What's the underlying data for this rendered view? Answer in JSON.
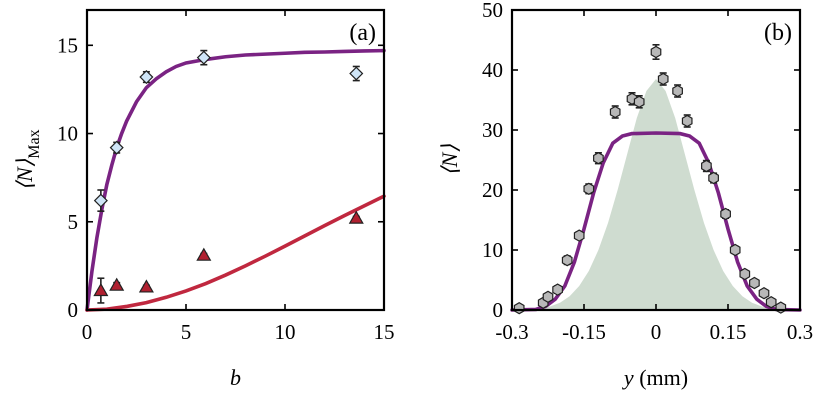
{
  "chart_data": [
    {
      "type": "scatter",
      "panel_label": "(a)",
      "xlabel": "b",
      "ylabel": "⟨N⟩",
      "ylabel_subscript": "Max",
      "xlim": [
        0,
        15
      ],
      "ylim": [
        0,
        17
      ],
      "xticks": [
        0,
        5,
        10,
        15
      ],
      "yticks": [
        0,
        5,
        10,
        15
      ],
      "series": [
        {
          "marker": "diamond",
          "color": "#cfe5f7",
          "points": [
            {
              "x": 0.7,
              "y": 6.2,
              "err": 0.6
            },
            {
              "x": 1.5,
              "y": 9.2,
              "err": 0.3
            },
            {
              "x": 3.0,
              "y": 13.2,
              "err": 0.3
            },
            {
              "x": 5.9,
              "y": 14.3,
              "err": 0.4
            },
            {
              "x": 13.6,
              "y": 13.4,
              "err": 0.4
            }
          ]
        },
        {
          "marker": "triangle",
          "color": "#b02030",
          "points": [
            {
              "x": 0.7,
              "y": 1.1,
              "err": 0.7
            },
            {
              "x": 1.5,
              "y": 1.4,
              "err": 0.15
            },
            {
              "x": 3.0,
              "y": 1.3,
              "err": 0.1
            },
            {
              "x": 5.9,
              "y": 3.1,
              "err": 0.1
            },
            {
              "x": 13.6,
              "y": 5.2,
              "err": 0.1
            }
          ]
        }
      ],
      "curves": [
        {
          "color": "#7a2383",
          "points": [
            [
              0,
              0
            ],
            [
              0.25,
              2.2
            ],
            [
              0.5,
              4.1
            ],
            [
              0.75,
              5.7
            ],
            [
              1,
              7.1
            ],
            [
              1.25,
              8.2
            ],
            [
              1.5,
              9.2
            ],
            [
              1.75,
              10.0
            ],
            [
              2,
              10.7
            ],
            [
              2.5,
              11.8
            ],
            [
              3,
              12.6
            ],
            [
              3.5,
              13.1
            ],
            [
              4,
              13.5
            ],
            [
              4.5,
              13.8
            ],
            [
              5,
              14.0
            ],
            [
              6,
              14.2
            ],
            [
              7,
              14.35
            ],
            [
              8,
              14.45
            ],
            [
              9,
              14.5
            ],
            [
              10,
              14.55
            ],
            [
              11,
              14.6
            ],
            [
              12,
              14.62
            ],
            [
              13,
              14.65
            ],
            [
              14,
              14.68
            ],
            [
              15,
              14.7
            ]
          ]
        },
        {
          "color": "#c0283f",
          "points": [
            [
              0,
              0
            ],
            [
              1,
              0.05
            ],
            [
              2,
              0.2
            ],
            [
              3,
              0.42
            ],
            [
              4,
              0.72
            ],
            [
              5,
              1.08
            ],
            [
              6,
              1.5
            ],
            [
              7,
              1.98
            ],
            [
              8,
              2.5
            ],
            [
              9,
              3.05
            ],
            [
              10,
              3.62
            ],
            [
              11,
              4.2
            ],
            [
              12,
              4.78
            ],
            [
              13,
              5.35
            ],
            [
              14,
              5.9
            ],
            [
              15,
              6.45
            ]
          ]
        }
      ]
    },
    {
      "type": "scatter",
      "panel_label": "(b)",
      "xlabel": "y (mm)",
      "ylabel": "⟨N⟩",
      "xlim": [
        -0.3,
        0.3
      ],
      "ylim": [
        0,
        50
      ],
      "xticks": [
        -0.3,
        -0.15,
        0,
        0.15,
        0.3
      ],
      "xtick_labels": [
        "-0.3",
        "-0.15",
        "0",
        "0.15",
        "0.3"
      ],
      "yticks": [
        0,
        10,
        20,
        30,
        40,
        50
      ],
      "area": {
        "color": "#cfdcd0",
        "points": [
          [
            -0.3,
            0
          ],
          [
            -0.25,
            0.2
          ],
          [
            -0.22,
            0.6
          ],
          [
            -0.2,
            1.2
          ],
          [
            -0.18,
            2.3
          ],
          [
            -0.16,
            4.0
          ],
          [
            -0.14,
            6.5
          ],
          [
            -0.12,
            10.0
          ],
          [
            -0.1,
            14.5
          ],
          [
            -0.08,
            20.0
          ],
          [
            -0.06,
            26.0
          ],
          [
            -0.04,
            32.0
          ],
          [
            -0.02,
            36.5
          ],
          [
            0,
            38.5
          ],
          [
            0.02,
            36.5
          ],
          [
            0.04,
            32.0
          ],
          [
            0.06,
            26.0
          ],
          [
            0.08,
            20.0
          ],
          [
            0.1,
            14.5
          ],
          [
            0.12,
            10.0
          ],
          [
            0.14,
            6.5
          ],
          [
            0.16,
            4.0
          ],
          [
            0.18,
            2.3
          ],
          [
            0.2,
            1.2
          ],
          [
            0.22,
            0.6
          ],
          [
            0.25,
            0.2
          ],
          [
            0.3,
            0
          ]
        ]
      },
      "curve": {
        "color": "#7a2383",
        "points": [
          [
            -0.3,
            0
          ],
          [
            -0.25,
            0.1
          ],
          [
            -0.23,
            0.6
          ],
          [
            -0.21,
            1.8
          ],
          [
            -0.19,
            4.0
          ],
          [
            -0.17,
            8.0
          ],
          [
            -0.15,
            13.5
          ],
          [
            -0.13,
            19.5
          ],
          [
            -0.11,
            24.5
          ],
          [
            -0.09,
            27.8
          ],
          [
            -0.07,
            29.0
          ],
          [
            -0.05,
            29.4
          ],
          [
            0,
            29.5
          ],
          [
            0.05,
            29.4
          ],
          [
            0.07,
            29.0
          ],
          [
            0.09,
            27.8
          ],
          [
            0.11,
            24.5
          ],
          [
            0.13,
            19.5
          ],
          [
            0.15,
            13.5
          ],
          [
            0.17,
            8.0
          ],
          [
            0.19,
            4.0
          ],
          [
            0.21,
            1.8
          ],
          [
            0.23,
            0.6
          ],
          [
            0.25,
            0.1
          ],
          [
            0.3,
            0
          ]
        ]
      },
      "series": [
        {
          "marker": "hexagon",
          "color": "#b8b8b8",
          "points": [
            {
              "x": -0.285,
              "y": 0.3,
              "err": 0.3
            },
            {
              "x": -0.235,
              "y": 1.2,
              "err": 0.5
            },
            {
              "x": -0.225,
              "y": 2.2,
              "err": 0.5
            },
            {
              "x": -0.205,
              "y": 3.4,
              "err": 0.6
            },
            {
              "x": -0.185,
              "y": 8.3,
              "err": 0.7
            },
            {
              "x": -0.16,
              "y": 12.4,
              "err": 0.6
            },
            {
              "x": -0.14,
              "y": 20.2,
              "err": 0.8
            },
            {
              "x": -0.12,
              "y": 25.3,
              "err": 0.9
            },
            {
              "x": -0.085,
              "y": 33.0,
              "err": 1.0
            },
            {
              "x": -0.05,
              "y": 35.2,
              "err": 1.0
            },
            {
              "x": -0.035,
              "y": 34.7,
              "err": 1.0
            },
            {
              "x": 0.0,
              "y": 43.0,
              "err": 1.2
            },
            {
              "x": 0.015,
              "y": 38.5,
              "err": 1.0
            },
            {
              "x": 0.045,
              "y": 36.5,
              "err": 1.0
            },
            {
              "x": 0.065,
              "y": 31.5,
              "err": 1.0
            },
            {
              "x": 0.105,
              "y": 24.0,
              "err": 0.9
            },
            {
              "x": 0.12,
              "y": 22.0,
              "err": 0.8
            },
            {
              "x": 0.145,
              "y": 16.0,
              "err": 0.7
            },
            {
              "x": 0.165,
              "y": 10.0,
              "err": 0.6
            },
            {
              "x": 0.185,
              "y": 6.0,
              "err": 0.5
            },
            {
              "x": 0.205,
              "y": 4.5,
              "err": 0.5
            },
            {
              "x": 0.225,
              "y": 2.8,
              "err": 0.5
            },
            {
              "x": 0.24,
              "y": 1.3,
              "err": 0.4
            },
            {
              "x": 0.26,
              "y": 0.4,
              "err": 0.3
            }
          ]
        }
      ]
    }
  ]
}
